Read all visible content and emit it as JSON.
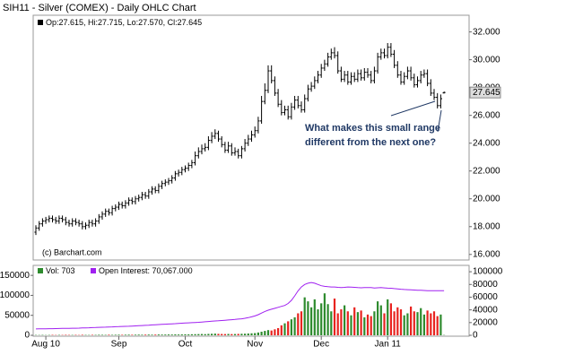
{
  "chart_data": [
    {
      "type": "ohlc",
      "title": "SIH11 - Silver (COMEX) - Daily OHLC Chart",
      "legend_text": "Op:27.615, Hi:27.715, Lo:27.570, Cl:27.645",
      "source": "(c) Barchart.com",
      "annotation": [
        "What makes this small range",
        "different from the   next one?"
      ],
      "color": "#000000",
      "ylim": [
        15.6,
        33.2
      ],
      "yticks": [
        {
          "value": 16,
          "label": "16.000"
        },
        {
          "value": 18,
          "label": "18.000"
        },
        {
          "value": 20,
          "label": "20.000"
        },
        {
          "value": 22,
          "label": "22.000"
        },
        {
          "value": 24,
          "label": "24.000"
        },
        {
          "value": 26,
          "label": "26.000"
        },
        {
          "value": 28,
          "label": "28.000"
        },
        {
          "value": 30,
          "label": "30.000"
        },
        {
          "value": 32,
          "label": "32.000"
        }
      ],
      "open": [
        17.6,
        17.9,
        18.2,
        18.4,
        18.5,
        18.6,
        18.5,
        18.4,
        18.6,
        18.5,
        18.3,
        18.2,
        18.4,
        18.3,
        18.2,
        18.0,
        18.1,
        18.3,
        18.2,
        18.4,
        18.7,
        18.9,
        19.1,
        19.0,
        19.3,
        19.4,
        19.6,
        19.5,
        19.7,
        19.9,
        19.8,
        20.0,
        20.1,
        20.3,
        20.2,
        20.5,
        20.7,
        20.6,
        20.9,
        21.1,
        21.2,
        21.3,
        21.5,
        21.8,
        21.9,
        22.1,
        22.2,
        22.4,
        22.6,
        23.1,
        23.4,
        23.6,
        23.7,
        24.2,
        24.5,
        24.7,
        24.3,
        23.9,
        23.5,
        23.8,
        23.3,
        23.4,
        23.1,
        23.6,
        24.0,
        24.3,
        24.6,
        24.9,
        25.6,
        27.0,
        27.8,
        29.2,
        28.5,
        27.6,
        26.8,
        26.2,
        26.4,
        25.9,
        26.6,
        27.1,
        26.7,
        26.4,
        27.2,
        27.9,
        28.1,
        28.5,
        28.9,
        29.4,
        29.7,
        30.2,
        30.5,
        30.3,
        29.2,
        28.6,
        28.9,
        28.4,
        28.8,
        28.6,
        29.0,
        28.7,
        29.1,
        28.9,
        28.5,
        29.2,
        30.2,
        30.5,
        30.3,
        30.9,
        30.4,
        29.6,
        28.9,
        28.4,
        28.8,
        29.2,
        28.7,
        28.2,
        28.5,
        28.9,
        29.0,
        28.3,
        27.6,
        27.3,
        26.7,
        27.615
      ],
      "high": [
        18.1,
        18.4,
        18.6,
        18.7,
        18.8,
        18.8,
        18.7,
        18.8,
        18.8,
        18.7,
        18.5,
        18.6,
        18.6,
        18.5,
        18.4,
        18.3,
        18.5,
        18.5,
        18.6,
        18.9,
        19.1,
        19.3,
        19.3,
        19.5,
        19.6,
        19.8,
        19.8,
        19.9,
        20.1,
        20.1,
        20.2,
        20.3,
        20.5,
        20.5,
        20.7,
        20.9,
        20.9,
        21.1,
        21.3,
        21.4,
        21.5,
        21.7,
        22.0,
        22.1,
        22.3,
        22.4,
        22.6,
        22.8,
        23.4,
        23.7,
        23.9,
        24.0,
        24.5,
        24.8,
        25.0,
        24.9,
        24.5,
        24.1,
        24.1,
        24.0,
        23.7,
        23.6,
        23.8,
        24.3,
        24.6,
        24.9,
        25.2,
        25.9,
        27.4,
        28.3,
        29.6,
        29.6,
        28.8,
        27.9,
        27.1,
        26.7,
        26.7,
        26.9,
        27.4,
        27.4,
        27.0,
        27.5,
        28.2,
        28.4,
        28.8,
        29.2,
        29.7,
        30.0,
        30.5,
        30.8,
        30.9,
        30.6,
        29.5,
        29.2,
        29.2,
        29.1,
        29.1,
        29.3,
        29.3,
        29.4,
        29.4,
        29.2,
        29.5,
        30.5,
        30.8,
        30.8,
        31.2,
        31.2,
        30.7,
        29.9,
        29.2,
        29.1,
        29.5,
        29.5,
        29.0,
        28.8,
        29.2,
        29.3,
        29.3,
        28.6,
        27.9,
        27.6,
        27.5,
        27.715
      ],
      "low": [
        17.4,
        17.7,
        18.0,
        18.2,
        18.3,
        18.3,
        18.2,
        18.2,
        18.3,
        18.1,
        18.0,
        18.0,
        18.1,
        18.0,
        17.8,
        17.8,
        17.9,
        18.0,
        18.0,
        18.2,
        18.5,
        18.7,
        18.8,
        18.8,
        19.1,
        19.2,
        19.3,
        19.3,
        19.5,
        19.6,
        19.6,
        19.8,
        19.9,
        20.0,
        20.0,
        20.3,
        20.4,
        20.4,
        20.7,
        20.9,
        21.0,
        21.1,
        21.3,
        21.6,
        21.7,
        21.9,
        22.0,
        22.2,
        22.4,
        22.9,
        23.2,
        23.4,
        23.5,
        24.0,
        24.3,
        24.1,
        23.7,
        23.3,
        23.3,
        23.1,
        23.1,
        22.9,
        22.9,
        23.4,
        23.8,
        24.1,
        24.4,
        24.7,
        25.4,
        26.8,
        27.6,
        28.3,
        27.4,
        26.6,
        26.0,
        26.0,
        25.7,
        25.7,
        26.4,
        26.5,
        26.2,
        26.2,
        27.0,
        27.7,
        27.9,
        28.3,
        28.7,
        29.2,
        29.5,
        30.0,
        30.1,
        29.0,
        28.4,
        28.4,
        28.2,
        28.2,
        28.4,
        28.4,
        28.5,
        28.5,
        28.7,
        28.3,
        28.3,
        29.0,
        30.0,
        30.1,
        30.1,
        30.2,
        29.4,
        28.7,
        28.2,
        28.2,
        28.6,
        28.5,
        28.0,
        28.0,
        28.3,
        28.7,
        28.1,
        27.4,
        27.1,
        26.5,
        26.5,
        27.57
      ],
      "close": [
        17.9,
        18.2,
        18.4,
        18.5,
        18.6,
        18.5,
        18.4,
        18.6,
        18.5,
        18.3,
        18.2,
        18.4,
        18.3,
        18.2,
        18.0,
        18.1,
        18.3,
        18.2,
        18.4,
        18.7,
        18.9,
        19.1,
        19.0,
        19.3,
        19.4,
        19.6,
        19.5,
        19.7,
        19.9,
        19.8,
        20.0,
        20.1,
        20.3,
        20.2,
        20.5,
        20.7,
        20.6,
        20.9,
        21.1,
        21.2,
        21.3,
        21.5,
        21.8,
        21.9,
        22.1,
        22.2,
        22.4,
        22.6,
        23.1,
        23.4,
        23.6,
        23.7,
        24.2,
        24.5,
        24.7,
        24.3,
        23.9,
        23.5,
        23.8,
        23.3,
        23.4,
        23.1,
        23.6,
        24.0,
        24.3,
        24.6,
        24.9,
        25.6,
        27.0,
        27.8,
        29.2,
        28.5,
        27.6,
        26.8,
        26.2,
        26.4,
        25.9,
        26.6,
        27.1,
        26.7,
        26.4,
        27.2,
        27.9,
        28.1,
        28.5,
        28.9,
        29.4,
        29.7,
        30.2,
        30.5,
        30.3,
        29.2,
        28.6,
        28.9,
        28.4,
        28.8,
        28.6,
        29.0,
        28.7,
        29.1,
        28.9,
        28.5,
        29.2,
        30.2,
        30.5,
        30.3,
        30.9,
        30.4,
        29.6,
        28.9,
        28.4,
        28.8,
        29.2,
        28.7,
        28.2,
        28.5,
        28.9,
        29.0,
        28.3,
        27.6,
        27.3,
        26.7,
        27.2,
        27.645
      ]
    },
    {
      "type": "volume",
      "categories": [
        null,
        null,
        null,
        "Aug 10",
        null,
        null,
        null,
        null,
        null,
        null,
        null,
        null,
        null,
        null,
        null,
        null,
        null,
        null,
        null,
        null,
        null,
        null,
        null,
        null,
        null,
        "Sep",
        null,
        null,
        null,
        null,
        null,
        null,
        null,
        null,
        null,
        null,
        null,
        null,
        null,
        null,
        null,
        null,
        null,
        null,
        null,
        "Oct",
        null,
        null,
        null,
        null,
        null,
        null,
        null,
        null,
        null,
        null,
        null,
        null,
        null,
        null,
        null,
        null,
        null,
        null,
        null,
        null,
        "Nov",
        null,
        null,
        null,
        null,
        null,
        null,
        null,
        null,
        null,
        null,
        null,
        null,
        null,
        null,
        null,
        null,
        null,
        null,
        null,
        "Dec",
        null,
        null,
        null,
        null,
        null,
        null,
        null,
        null,
        null,
        null,
        null,
        null,
        null,
        null,
        null,
        null,
        null,
        null,
        null,
        "Jan 11",
        null,
        null,
        null,
        null,
        null,
        null,
        null,
        null,
        null,
        null,
        null,
        null,
        null,
        null,
        null,
        null,
        null
      ],
      "ylim": [
        0,
        175000
      ],
      "yticks": [
        0,
        50000,
        100000,
        150000
      ],
      "y2lim": [
        0,
        110000
      ],
      "y2ticks": [
        0,
        20000,
        40000,
        60000,
        80000,
        100000
      ],
      "series": [
        {
          "name": "Vol: 703",
          "up_color": "#2e8b2e",
          "down_color": "#e8231f",
          "values": [
            800,
            700,
            900,
            600,
            800,
            1000,
            700,
            900,
            800,
            1100,
            900,
            800,
            1000,
            700,
            1200,
            900,
            800,
            1100,
            1000,
            1300,
            1200,
            1000,
            1400,
            1100,
            1300,
            1500,
            1200,
            1400,
            1600,
            1300,
            1500,
            1700,
            1400,
            1600,
            1800,
            1500,
            1700,
            2000,
            1800,
            1900,
            2100,
            1900,
            2300,
            2000,
            2200,
            2500,
            2300,
            2600,
            2800,
            3000,
            3200,
            2900,
            3500,
            3800,
            4200,
            3600,
            3300,
            3100,
            3400,
            3000,
            3200,
            3500,
            3800,
            4000,
            4500,
            5000,
            5500,
            7000,
            9000,
            11000,
            13000,
            12000,
            15000,
            18000,
            25000,
            30000,
            35000,
            40000,
            45000,
            55000,
            60000,
            95000,
            85000,
            70000,
            90000,
            65000,
            80000,
            105000,
            78000,
            60000,
            92000,
            55000,
            65000,
            75000,
            60000,
            50000,
            70000,
            58000,
            62000,
            45000,
            52000,
            48000,
            60000,
            85000,
            75000,
            55000,
            90000,
            80000,
            60000,
            70000,
            65000,
            50000,
            55000,
            72000,
            60000,
            58000,
            68000,
            52000,
            62000,
            55000,
            60000,
            48000,
            52000,
            703
          ]
        },
        {
          "name": "Open Interest: 70,067.000",
          "color": "#a020f0",
          "axis": "y2",
          "values": [
            10000,
            10100,
            10200,
            10300,
            10400,
            10500,
            10600,
            10700,
            10800,
            10900,
            11000,
            11100,
            11200,
            11300,
            11500,
            11700,
            11900,
            12100,
            12300,
            12500,
            12700,
            12900,
            13100,
            13300,
            13500,
            13700,
            13900,
            14100,
            14300,
            14500,
            14800,
            15100,
            15400,
            15700,
            16000,
            16300,
            16600,
            16900,
            17200,
            17500,
            17800,
            18100,
            18400,
            18700,
            19000,
            19300,
            19600,
            19900,
            20200,
            20500,
            20900,
            21300,
            21700,
            22100,
            22500,
            22900,
            23300,
            23700,
            24100,
            24500,
            25000,
            25500,
            26000,
            26800,
            27800,
            29000,
            30500,
            32500,
            35000,
            37500,
            39500,
            41000,
            42500,
            44000,
            45500,
            47000,
            50000,
            55000,
            62000,
            70000,
            76000,
            80000,
            82000,
            83000,
            82000,
            80000,
            78000,
            77000,
            76500,
            76000,
            76000,
            75500,
            75000,
            75500,
            76000,
            75800,
            75500,
            75000,
            74800,
            75000,
            75200,
            75000,
            74500,
            74800,
            75000,
            74600,
            74200,
            74000,
            73500,
            73000,
            72500,
            72000,
            71800,
            71500,
            71200,
            71000,
            70800,
            70500,
            70300,
            70200,
            70100,
            70050,
            70080,
            70067
          ]
        }
      ]
    }
  ]
}
